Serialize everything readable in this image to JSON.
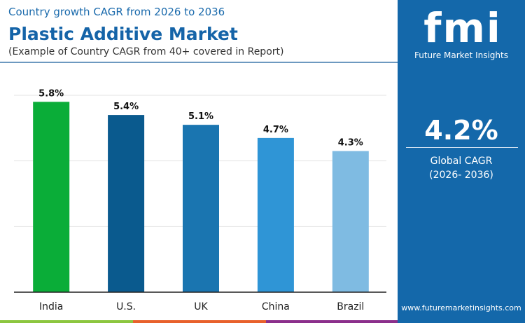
{
  "header": {
    "subtitle": "Country growth CAGR from 2026 to 2036",
    "title": "Plastic Additive Market",
    "note": "(Example of Country CAGR from 40+ covered in Report)"
  },
  "panel": {
    "logo": "fmi",
    "brand": "Future Market Insights",
    "global_cagr": "4.2%",
    "global_label": "Global CAGR",
    "period": "(2026- 2036)",
    "website": "www.futuremarketinsights.com",
    "bg": "#1468aa"
  },
  "chart_data": {
    "type": "bar",
    "categories": [
      "India",
      "U.S.",
      "UK",
      "China",
      "Brazil"
    ],
    "values": [
      5.8,
      5.4,
      5.1,
      4.7,
      4.3
    ],
    "labels": [
      "5.8%",
      "5.4%",
      "5.1%",
      "4.7%",
      "4.3%"
    ],
    "colors": [
      "#0aad38",
      "#0a5a8e",
      "#1a75b0",
      "#2f95d6",
      "#7fbbe2"
    ],
    "ylim": [
      0,
      6
    ],
    "grid": true,
    "gridlines": [
      2,
      4,
      6
    ]
  },
  "stripes": [
    "#8cc63f",
    "#e8612c",
    "#8b2f8b"
  ]
}
